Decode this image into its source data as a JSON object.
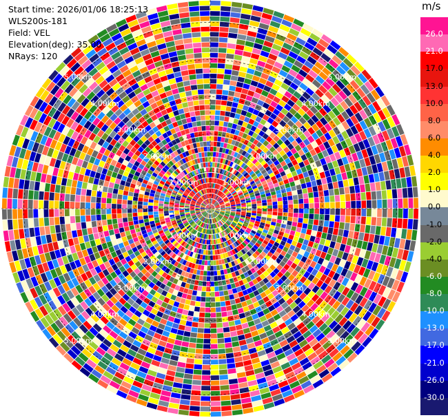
{
  "info": {
    "start_time": "Start time: 2026/01/06 18:25:13",
    "instrument": "WLS200s-181",
    "field": "Field: VEL",
    "elevation": "Elevation(deg): 35.00",
    "nrays": "NRays: 120"
  },
  "plot": {
    "n_rays": 120,
    "n_gates": 40,
    "max_range_km": 5.6,
    "range_rings_km": [
      1,
      2,
      3,
      4,
      5
    ],
    "ring_labels": [
      "1.00km",
      "2.00km",
      "3.00km",
      "4.00km",
      "5.00km"
    ]
  },
  "colorbar": {
    "unit": "m/s",
    "labels": [
      "26.0",
      "21.0",
      "17.0",
      "13.0",
      "10.0",
      "8.0",
      "6.0",
      "4.0",
      "2.0",
      "1.0",
      "0.0",
      "-1.0",
      "-2.0",
      "-4.0",
      "-6.0",
      "-8.0",
      "-10.0",
      "-13.0",
      "-17.0",
      "-21.0",
      "-26.0",
      "-30.0"
    ],
    "colors": [
      "#ff1493",
      "#ff69b4",
      "#ff0000",
      "#e8150e",
      "#ff3333",
      "#ff6347",
      "#ff8c69",
      "#ff8c00",
      "#ffd700",
      "#ffff00",
      "#fffacd",
      "#778899",
      "#696969",
      "#9acd32",
      "#6b8e23",
      "#228b22",
      "#2e8b57",
      "#1e90ff",
      "#4169e1",
      "#0000ff",
      "#0000cd",
      "#000080",
      "#191970"
    ]
  }
}
